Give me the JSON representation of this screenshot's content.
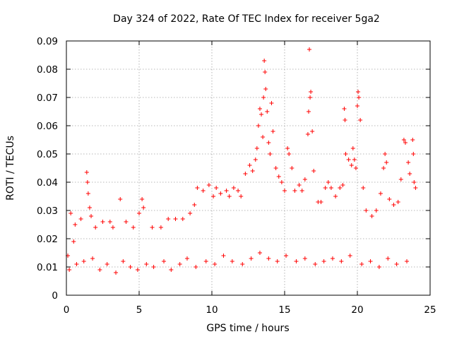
{
  "chart_data": {
    "type": "scatter",
    "title": "Day 324 of 2022, Rate Of TEC Index for receiver 5ga2",
    "xlabel": "GPS time / hours",
    "ylabel": "ROTI / TECUs",
    "xlim": [
      0,
      25
    ],
    "ylim": [
      0,
      0.09
    ],
    "x_ticks": [
      0,
      5,
      10,
      15,
      20,
      25
    ],
    "x_tick_labels": [
      "0",
      "5",
      "10",
      "15",
      "20",
      "25"
    ],
    "y_ticks": [
      0,
      0.01,
      0.02,
      0.03,
      0.04,
      0.05,
      0.06,
      0.07,
      0.08,
      0.09
    ],
    "y_tick_labels": [
      "0",
      "0.01",
      "0.02",
      "0.03",
      "0.04",
      "0.05",
      "0.06",
      "0.07",
      "0.08",
      "0.09"
    ],
    "grid": true,
    "marker": "+",
    "color": "#ff0000",
    "series": [
      {
        "points": [
          [
            0.1,
            0.014
          ],
          [
            0.3,
            0.029
          ],
          [
            0.5,
            0.019
          ],
          [
            0.6,
            0.025
          ],
          [
            1.0,
            0.027
          ],
          [
            1.4,
            0.0435
          ],
          [
            1.45,
            0.04
          ],
          [
            1.5,
            0.036
          ],
          [
            1.6,
            0.031
          ],
          [
            1.7,
            0.028
          ],
          [
            2.0,
            0.024
          ],
          [
            2.5,
            0.026
          ],
          [
            3.0,
            0.026
          ],
          [
            3.2,
            0.024
          ],
          [
            3.7,
            0.034
          ],
          [
            4.1,
            0.026
          ],
          [
            4.6,
            0.024
          ],
          [
            5.0,
            0.029
          ],
          [
            5.2,
            0.034
          ],
          [
            5.3,
            0.031
          ],
          [
            5.9,
            0.024
          ],
          [
            6.5,
            0.024
          ],
          [
            7.0,
            0.027
          ],
          [
            7.5,
            0.027
          ],
          [
            8.0,
            0.027
          ],
          [
            8.5,
            0.029
          ],
          [
            8.8,
            0.032
          ],
          [
            9.0,
            0.038
          ],
          [
            9.4,
            0.037
          ],
          [
            9.8,
            0.039
          ],
          [
            10.1,
            0.035
          ],
          [
            10.3,
            0.038
          ],
          [
            10.6,
            0.036
          ],
          [
            11.0,
            0.037
          ],
          [
            11.2,
            0.035
          ],
          [
            11.5,
            0.038
          ],
          [
            11.8,
            0.037
          ],
          [
            12.0,
            0.035
          ],
          [
            12.3,
            0.043
          ],
          [
            12.6,
            0.046
          ],
          [
            12.8,
            0.044
          ],
          [
            13.0,
            0.048
          ],
          [
            13.1,
            0.052
          ],
          [
            13.2,
            0.06
          ],
          [
            13.3,
            0.066
          ],
          [
            13.4,
            0.064
          ],
          [
            13.5,
            0.056
          ],
          [
            13.55,
            0.07
          ],
          [
            13.6,
            0.083
          ],
          [
            13.65,
            0.079
          ],
          [
            13.7,
            0.073
          ],
          [
            13.8,
            0.065
          ],
          [
            13.9,
            0.054
          ],
          [
            14.0,
            0.05
          ],
          [
            14.1,
            0.068
          ],
          [
            14.2,
            0.058
          ],
          [
            14.4,
            0.045
          ],
          [
            14.6,
            0.042
          ],
          [
            14.8,
            0.04
          ],
          [
            15.0,
            0.037
          ],
          [
            15.2,
            0.052
          ],
          [
            15.3,
            0.05
          ],
          [
            15.5,
            0.045
          ],
          [
            15.7,
            0.037
          ],
          [
            16.0,
            0.039
          ],
          [
            16.2,
            0.037
          ],
          [
            16.4,
            0.041
          ],
          [
            16.6,
            0.057
          ],
          [
            16.65,
            0.065
          ],
          [
            16.7,
            0.087
          ],
          [
            16.75,
            0.07
          ],
          [
            16.8,
            0.072
          ],
          [
            16.9,
            0.058
          ],
          [
            17.0,
            0.044
          ],
          [
            17.3,
            0.033
          ],
          [
            17.5,
            0.033
          ],
          [
            17.8,
            0.038
          ],
          [
            18.0,
            0.04
          ],
          [
            18.2,
            0.038
          ],
          [
            18.5,
            0.035
          ],
          [
            18.8,
            0.038
          ],
          [
            19.0,
            0.039
          ],
          [
            19.1,
            0.066
          ],
          [
            19.15,
            0.062
          ],
          [
            19.2,
            0.05
          ],
          [
            19.4,
            0.048
          ],
          [
            19.6,
            0.046
          ],
          [
            19.7,
            0.052
          ],
          [
            19.8,
            0.048
          ],
          [
            19.9,
            0.045
          ],
          [
            20.0,
            0.067
          ],
          [
            20.05,
            0.072
          ],
          [
            20.1,
            0.07
          ],
          [
            20.2,
            0.062
          ],
          [
            20.4,
            0.038
          ],
          [
            20.6,
            0.03
          ],
          [
            21.0,
            0.028
          ],
          [
            21.3,
            0.03
          ],
          [
            21.6,
            0.036
          ],
          [
            21.8,
            0.045
          ],
          [
            21.9,
            0.05
          ],
          [
            22.0,
            0.047
          ],
          [
            22.2,
            0.034
          ],
          [
            22.5,
            0.032
          ],
          [
            22.8,
            0.033
          ],
          [
            23.0,
            0.041
          ],
          [
            23.2,
            0.055
          ],
          [
            23.3,
            0.054
          ],
          [
            23.5,
            0.047
          ],
          [
            23.6,
            0.043
          ],
          [
            23.8,
            0.055
          ],
          [
            23.85,
            0.05
          ],
          [
            23.9,
            0.04
          ],
          [
            24.0,
            0.038
          ],
          [
            0.2,
            0.009
          ],
          [
            0.7,
            0.011
          ],
          [
            1.2,
            0.012
          ],
          [
            1.8,
            0.013
          ],
          [
            2.3,
            0.009
          ],
          [
            2.8,
            0.011
          ],
          [
            3.4,
            0.008
          ],
          [
            3.9,
            0.012
          ],
          [
            4.4,
            0.01
          ],
          [
            4.9,
            0.009
          ],
          [
            5.5,
            0.011
          ],
          [
            6.0,
            0.01
          ],
          [
            6.7,
            0.012
          ],
          [
            7.2,
            0.009
          ],
          [
            7.8,
            0.011
          ],
          [
            8.3,
            0.013
          ],
          [
            8.9,
            0.01
          ],
          [
            9.6,
            0.012
          ],
          [
            10.2,
            0.011
          ],
          [
            10.8,
            0.014
          ],
          [
            11.4,
            0.012
          ],
          [
            12.1,
            0.011
          ],
          [
            12.7,
            0.013
          ],
          [
            13.3,
            0.015
          ],
          [
            13.9,
            0.013
          ],
          [
            14.5,
            0.012
          ],
          [
            15.1,
            0.014
          ],
          [
            15.8,
            0.012
          ],
          [
            16.4,
            0.013
          ],
          [
            17.1,
            0.011
          ],
          [
            17.7,
            0.012
          ],
          [
            18.3,
            0.013
          ],
          [
            18.9,
            0.012
          ],
          [
            19.5,
            0.014
          ],
          [
            20.3,
            0.011
          ],
          [
            20.9,
            0.012
          ],
          [
            21.5,
            0.01
          ],
          [
            22.1,
            0.013
          ],
          [
            22.7,
            0.011
          ],
          [
            23.4,
            0.012
          ]
        ]
      }
    ]
  }
}
